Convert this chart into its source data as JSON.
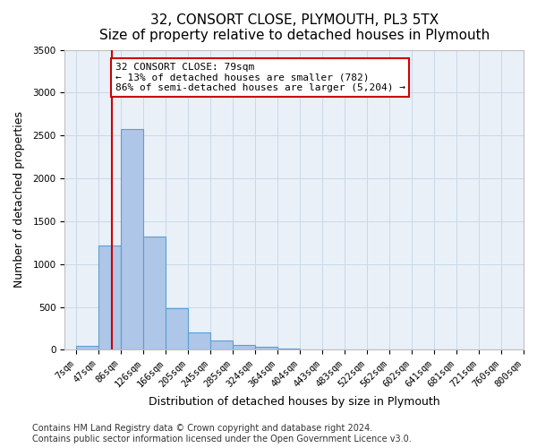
{
  "title": "32, CONSORT CLOSE, PLYMOUTH, PL3 5TX",
  "subtitle": "Size of property relative to detached houses in Plymouth",
  "xlabel": "Distribution of detached houses by size in Plymouth",
  "ylabel": "Number of detached properties",
  "bar_labels": [
    "7sqm",
    "47sqm",
    "86sqm",
    "126sqm",
    "166sqm",
    "205sqm",
    "245sqm",
    "285sqm",
    "324sqm",
    "364sqm",
    "404sqm",
    "443sqm",
    "483sqm",
    "522sqm",
    "562sqm",
    "602sqm",
    "641sqm",
    "681sqm",
    "721sqm",
    "760sqm",
    "800sqm"
  ],
  "bar_values": [
    50,
    1220,
    2580,
    1320,
    480,
    200,
    110,
    60,
    30,
    15,
    5,
    3,
    2,
    1,
    1,
    0,
    0,
    0,
    0,
    0
  ],
  "bar_color": "#aec6e8",
  "bar_edge_color": "#5a9fd4",
  "vline_x": 1.6,
  "vline_color": "#cc0000",
  "annotation_text": "32 CONSORT CLOSE: 79sqm\n← 13% of detached houses are smaller (782)\n86% of semi-detached houses are larger (5,204) →",
  "annotation_box_color": "#cc0000",
  "ylim": [
    0,
    3500
  ],
  "yticks": [
    0,
    500,
    1000,
    1500,
    2000,
    2500,
    3000,
    3500
  ],
  "bg_color": "#eaf0f8",
  "plot_bg_color": "#eaf0f8",
  "footer_line1": "Contains HM Land Registry data © Crown copyright and database right 2024.",
  "footer_line2": "Contains public sector information licensed under the Open Government Licence v3.0.",
  "title_fontsize": 11,
  "subtitle_fontsize": 10,
  "xlabel_fontsize": 9,
  "ylabel_fontsize": 9,
  "tick_fontsize": 7.5,
  "footer_fontsize": 7
}
